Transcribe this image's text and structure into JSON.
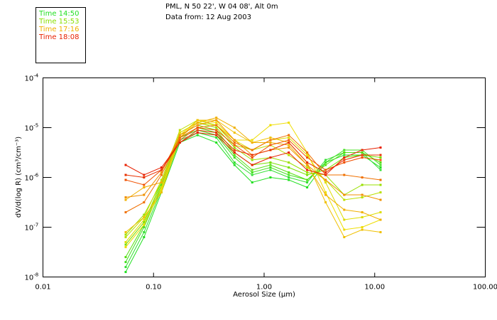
{
  "header": {
    "location": "PML, N 50 22', W 04 08', Alt 0m",
    "date": "Data from: 12 Aug 2003"
  },
  "legend": {
    "items": [
      {
        "label": "Time 14:50",
        "color": "#22e022"
      },
      {
        "label": "Time 15:53",
        "color": "#88e000"
      },
      {
        "label": "Time 17:16",
        "color": "#f0b000"
      },
      {
        "label": "Time 18:08",
        "color": "#e82000"
      }
    ]
  },
  "chart_data": {
    "type": "line",
    "title": "",
    "xlabel_prefix": "Aerosol Size (",
    "xlabel_unit": "μm",
    "xlabel_suffix": ")",
    "ylabel": "dV/d(log R)  (cm³/cm⁻³)",
    "xscale": "log",
    "yscale": "log",
    "xlim": [
      0.01,
      100
    ],
    "ylim_log10": [
      -8,
      -4
    ],
    "x_ticks": [
      0.01,
      0.1,
      1,
      10,
      100
    ],
    "x_tick_labels": [
      "0.01",
      "0.10",
      "1.00",
      "10.00",
      "100.00"
    ],
    "y_ticks_log10": [
      -4,
      -5,
      -6,
      -7,
      -8
    ],
    "y_tick_base": "10",
    "y_tick_exponents": [
      "-4",
      "-5",
      "-6",
      "-7",
      "-8"
    ],
    "x": [
      0.056,
      0.082,
      0.118,
      0.173,
      0.25,
      0.37,
      0.54,
      0.78,
      1.14,
      1.67,
      2.45,
      3.6,
      5.3,
      7.7,
      11.3
    ],
    "series_note": "values are log10(dV/dlogR)",
    "series": [
      {
        "name": "s01",
        "color": "#22e022",
        "values": [
          -7.9,
          -7.2,
          -6.3,
          -5.3,
          -5.15,
          -5.3,
          -5.75,
          -6.1,
          -6.0,
          -6.05,
          -6.2,
          -5.7,
          -5.55,
          -5.55,
          -5.8
        ]
      },
      {
        "name": "s02",
        "color": "#33e033",
        "values": [
          -7.8,
          -7.1,
          -6.25,
          -5.25,
          -5.1,
          -5.2,
          -5.7,
          -5.95,
          -5.85,
          -6.0,
          -6.1,
          -5.65,
          -5.5,
          -5.5,
          -5.85
        ]
      },
      {
        "name": "s03",
        "color": "#44e022",
        "values": [
          -7.7,
          -7.0,
          -6.2,
          -5.2,
          -5.05,
          -5.15,
          -5.6,
          -5.9,
          -5.8,
          -5.95,
          -6.05,
          -5.7,
          -5.45,
          -5.45,
          -5.75
        ]
      },
      {
        "name": "s04",
        "color": "#55e011",
        "values": [
          -7.6,
          -6.95,
          -6.15,
          -5.2,
          -5.0,
          -5.1,
          -5.55,
          -5.85,
          -5.75,
          -5.9,
          -6.05,
          -5.75,
          -5.5,
          -5.5,
          -5.7
        ]
      },
      {
        "name": "s05",
        "color": "#77e000",
        "values": [
          -7.35,
          -6.9,
          -6.1,
          -5.15,
          -4.95,
          -5.05,
          -5.5,
          -5.75,
          -5.7,
          -5.8,
          -5.95,
          -5.85,
          -5.6,
          -5.55,
          -5.6
        ]
      },
      {
        "name": "s06",
        "color": "#99e000",
        "values": [
          -7.15,
          -6.75,
          -6.1,
          -5.1,
          -4.9,
          -5.0,
          -5.4,
          -5.65,
          -5.6,
          -5.7,
          -5.9,
          -5.95,
          -6.35,
          -6.15,
          -6.15
        ]
      },
      {
        "name": "s07",
        "color": "#bbe000",
        "values": [
          -7.2,
          -6.8,
          -6.05,
          -5.05,
          -4.85,
          -4.95,
          -5.35,
          -5.45,
          -5.35,
          -5.55,
          -5.8,
          -6.05,
          -6.45,
          -6.4,
          -6.3
        ]
      },
      {
        "name": "s08",
        "color": "#dddd00",
        "values": [
          -7.3,
          -6.85,
          -6.2,
          -5.1,
          -4.9,
          -4.95,
          -5.25,
          -5.45,
          -5.25,
          -5.2,
          -5.55,
          -6.1,
          -6.85,
          -6.8,
          -6.7
        ]
      },
      {
        "name": "s09",
        "color": "#eedd00",
        "values": [
          -7.4,
          -6.95,
          -6.25,
          -5.15,
          -4.85,
          -4.9,
          -5.25,
          -5.25,
          -4.95,
          -4.9,
          -5.5,
          -6.3,
          -7.05,
          -7.0,
          -6.85
        ]
      },
      {
        "name": "s10",
        "color": "#f0c000",
        "values": [
          -7.1,
          -6.8,
          -6.3,
          -5.2,
          -4.85,
          -4.85,
          -5.1,
          -5.3,
          -5.2,
          -5.3,
          -5.7,
          -6.5,
          -7.2,
          -7.05,
          -7.1
        ]
      },
      {
        "name": "s11",
        "color": "#f0b000",
        "values": [
          -6.45,
          -6.2,
          -6.1,
          -5.2,
          -4.9,
          -4.8,
          -5.0,
          -5.3,
          -5.3,
          -5.35,
          -5.75,
          -6.35,
          -6.65,
          -6.7,
          -6.85
        ]
      },
      {
        "name": "s12",
        "color": "#f09000",
        "values": [
          -6.4,
          -6.35,
          -5.9,
          -5.15,
          -4.95,
          -4.85,
          -5.25,
          -5.55,
          -5.45,
          -5.4,
          -5.75,
          -6.05,
          -6.35,
          -6.35,
          -6.45
        ]
      },
      {
        "name": "s13",
        "color": "#f07000",
        "values": [
          -6.7,
          -6.5,
          -5.95,
          -5.2,
          -5.0,
          -4.95,
          -5.3,
          -5.45,
          -5.25,
          -5.15,
          -5.5,
          -5.95,
          -5.95,
          -6.0,
          -6.05
        ]
      },
      {
        "name": "s14",
        "color": "#f05000",
        "values": [
          -6.05,
          -6.15,
          -5.85,
          -5.25,
          -5.0,
          -5.05,
          -5.35,
          -5.6,
          -5.35,
          -5.25,
          -5.6,
          -5.85,
          -5.7,
          -5.6,
          -5.65
        ]
      },
      {
        "name": "s15",
        "color": "#e83000",
        "values": [
          -5.95,
          -6.0,
          -5.85,
          -5.3,
          -5.05,
          -5.1,
          -5.45,
          -5.55,
          -5.45,
          -5.3,
          -5.7,
          -5.9,
          -5.65,
          -5.55,
          -5.55
        ]
      },
      {
        "name": "s16",
        "color": "#e82000",
        "values": [
          -5.75,
          -5.95,
          -5.8,
          -5.3,
          -5.1,
          -5.15,
          -5.5,
          -5.75,
          -5.6,
          -5.5,
          -5.85,
          -5.95,
          -5.6,
          -5.45,
          -5.4
        ]
      }
    ]
  }
}
